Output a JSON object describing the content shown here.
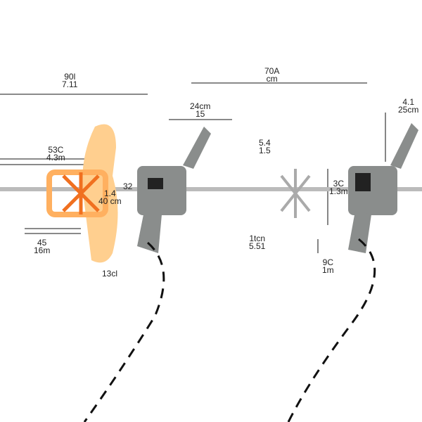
{
  "dimensions": [
    {
      "id": "total-length",
      "line1": "70A",
      "line2": "cm"
    },
    {
      "id": "left-total",
      "line1": "90l",
      "line2": "7.11"
    },
    {
      "id": "handle-width",
      "line1": "24cm",
      "line2": "15"
    },
    {
      "id": "right-handle",
      "line1": "4.1",
      "line2": "25cm"
    },
    {
      "id": "paddle-reach",
      "line1": "53C",
      "line2": "4.3m"
    },
    {
      "id": "shaft-mid",
      "line1": "5.4",
      "line2": "1.5"
    },
    {
      "id": "paddle-height",
      "line1": "1.4",
      "line2": "40 cm"
    },
    {
      "id": "chuck",
      "line1": "32",
      "line2": ""
    },
    {
      "id": "body-height",
      "line1": "3C",
      "line2": "1.3m"
    },
    {
      "id": "paddle-width",
      "line1": "45",
      "line2": "16m"
    },
    {
      "id": "height-mid",
      "line1": "1tcn",
      "line2": "5.51"
    },
    {
      "id": "grip-height",
      "line1": "9C",
      "line2": "1m"
    },
    {
      "id": "paddle-bottom",
      "line1": "13cl",
      "line2": ""
    }
  ],
  "colors": {
    "paddle": "#ffcf8f",
    "paddle_accent": "#f07020",
    "body": "#8a8d8c",
    "cord": "#111111",
    "line": "#333333"
  }
}
